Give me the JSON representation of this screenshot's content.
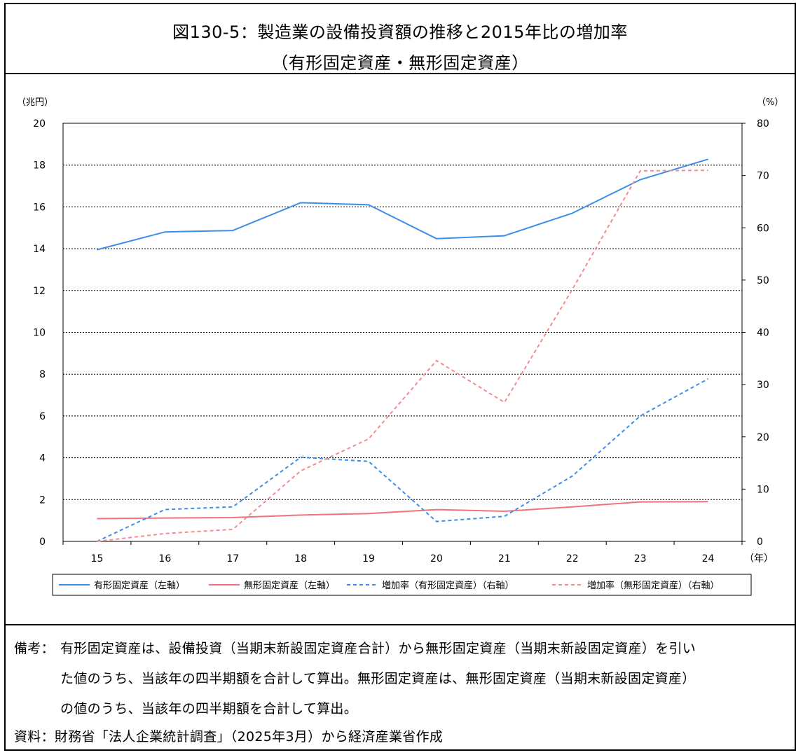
{
  "title": {
    "line1": "図130-5：製造業の設備投資額の推移と2015年比の増加率",
    "line2": "（有形固定資産・無形固定資産）"
  },
  "chart_data": {
    "type": "line",
    "left_axis_unit": "（兆円）",
    "right_axis_unit": "（%）",
    "x_unit": "（年）",
    "x": [
      "15",
      "16",
      "17",
      "18",
      "19",
      "20",
      "21",
      "22",
      "23",
      "24"
    ],
    "left_ylim": [
      0,
      20
    ],
    "left_ticks": [
      0,
      2,
      4,
      6,
      8,
      10,
      12,
      14,
      16,
      18,
      20
    ],
    "right_ylim": [
      0,
      80
    ],
    "right_ticks": [
      0,
      10,
      20,
      30,
      40,
      50,
      60,
      70,
      80
    ],
    "grid": true,
    "legend_position": "bottom",
    "series": [
      {
        "name": "有形固定資産（左軸）",
        "axis": "left",
        "style": "solid",
        "color": "#3c8ee6",
        "values": [
          13.95,
          14.8,
          14.87,
          16.2,
          16.1,
          14.48,
          14.62,
          15.7,
          17.3,
          18.28
        ]
      },
      {
        "name": "無形固定資産（左軸）",
        "axis": "left",
        "style": "solid",
        "color": "#f0737a",
        "values": [
          1.09,
          1.12,
          1.14,
          1.26,
          1.33,
          1.52,
          1.44,
          1.65,
          1.89,
          1.9
        ]
      },
      {
        "name": "増加率（有形固定資産）（右軸）",
        "axis": "right",
        "style": "dashed",
        "color": "#3c8ee6",
        "values": [
          0,
          6.1,
          6.6,
          16.1,
          15.3,
          3.8,
          4.8,
          12.5,
          24.0,
          31.1
        ]
      },
      {
        "name": "増加率（無形固定資産）（右軸）",
        "axis": "right",
        "style": "dashed",
        "color": "#f28c90",
        "values": [
          0,
          1.5,
          2.3,
          13.5,
          19.6,
          34.6,
          26.6,
          48.2,
          70.9,
          71.0
        ]
      }
    ]
  },
  "notes": {
    "biko_label": "備考：",
    "biko_line1": "有形固定資産は、設備投資（当期末新設固定資産合計）から無形固定資産（当期末新設固定資産）を引い",
    "biko_line2": "た値のうち、当該年の四半期額を合計して算出。無形固定資産は、無形固定資産（当期末新設固定資産）",
    "biko_line3": "の値のうち、当該年の四半期額を合計して算出。",
    "source": "資料：財務省「法人企業統計調査」（2025年3月）から経済産業省作成"
  }
}
